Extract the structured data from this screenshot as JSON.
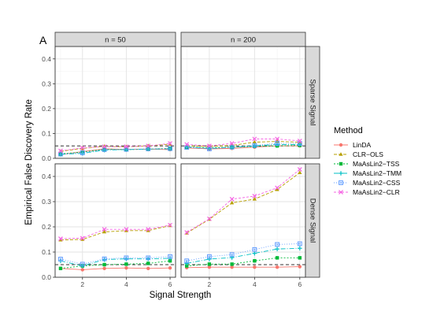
{
  "figure": {
    "panel_tag": "A",
    "xlabel": "Signal Strength",
    "ylabel": "Empirical False Discovery Rate",
    "legend_title": "Method",
    "col_strips": [
      "n = 50",
      "n = 200"
    ],
    "row_strips": [
      "Sparse Signal",
      "Dense Signal"
    ]
  },
  "chart_data": {
    "type": "line",
    "x": [
      1,
      2,
      3,
      4,
      5,
      6
    ],
    "xlim": [
      0.75,
      6.25
    ],
    "ylim": [
      0,
      0.45
    ],
    "x_ticks": [
      2,
      4,
      6
    ],
    "y_ticks": [
      0.0,
      0.1,
      0.2,
      0.3,
      0.4
    ],
    "y_tick_labels": [
      "0.0",
      "0.1",
      "0.2",
      "0.3",
      "0.4"
    ],
    "x_tick_labels": [
      "2",
      "4",
      "6"
    ],
    "reference_line": 0.05,
    "grid": true,
    "legend_position": "right",
    "series_styles": [
      {
        "name": "LinDA",
        "color": "#F8766D",
        "marker": "circle",
        "dash": "none"
      },
      {
        "name": "CLR−OLS",
        "color": "#B79F00",
        "marker": "triangle",
        "dash": "4 2"
      },
      {
        "name": "MaAsLin2−TSS",
        "color": "#00BA38",
        "marker": "square",
        "dash": "2 2"
      },
      {
        "name": "MaAsLin2−TMM",
        "color": "#00BFC4",
        "marker": "plus",
        "dash": "6 2 1 2"
      },
      {
        "name": "MaAsLin2−CSS",
        "color": "#619CFF",
        "marker": "boxed",
        "dash": "1 2"
      },
      {
        "name": "MaAsLin2−CLR",
        "color": "#F564E3",
        "marker": "cross",
        "dash": "3 2"
      }
    ],
    "panels": [
      {
        "column": "n = 50",
        "row": "Sparse Signal",
        "series": [
          {
            "name": "LinDA",
            "values": [
              0.015,
              0.027,
              0.038,
              0.036,
              0.037,
              0.035
            ]
          },
          {
            "name": "CLR−OLS",
            "values": [
              0.028,
              0.04,
              0.048,
              0.046,
              0.05,
              0.057
            ]
          },
          {
            "name": "MaAsLin2−TSS",
            "values": [
              0.018,
              0.025,
              0.036,
              0.035,
              0.037,
              0.04
            ]
          },
          {
            "name": "MaAsLin2−TMM",
            "values": [
              0.016,
              0.02,
              0.033,
              0.035,
              0.037,
              0.038
            ]
          },
          {
            "name": "MaAsLin2−CSS",
            "values": [
              0.017,
              0.022,
              0.035,
              0.036,
              0.038,
              0.039
            ]
          },
          {
            "name": "MaAsLin2−CLR",
            "values": [
              0.03,
              0.042,
              0.047,
              0.047,
              0.05,
              0.06
            ]
          }
        ]
      },
      {
        "column": "n = 200",
        "row": "Sparse Signal",
        "series": [
          {
            "name": "LinDA",
            "values": [
              0.042,
              0.038,
              0.04,
              0.045,
              0.05,
              0.05
            ]
          },
          {
            "name": "CLR−OLS",
            "values": [
              0.05,
              0.048,
              0.052,
              0.065,
              0.068,
              0.065
            ]
          },
          {
            "name": "MaAsLin2−TSS",
            "values": [
              0.045,
              0.042,
              0.045,
              0.048,
              0.05,
              0.052
            ]
          },
          {
            "name": "MaAsLin2−TMM",
            "values": [
              0.046,
              0.04,
              0.044,
              0.05,
              0.056,
              0.055
            ]
          },
          {
            "name": "MaAsLin2−CSS",
            "values": [
              0.044,
              0.038,
              0.045,
              0.052,
              0.06,
              0.06
            ]
          },
          {
            "name": "MaAsLin2−CLR",
            "values": [
              0.056,
              0.05,
              0.06,
              0.078,
              0.078,
              0.07
            ]
          }
        ]
      },
      {
        "column": "n = 50",
        "row": "Dense Signal",
        "series": [
          {
            "name": "LinDA",
            "values": [
              0.035,
              0.03,
              0.035,
              0.037,
              0.035,
              0.037
            ]
          },
          {
            "name": "CLR−OLS",
            "values": [
              0.148,
              0.15,
              0.18,
              0.185,
              0.185,
              0.205
            ]
          },
          {
            "name": "MaAsLin2−TSS",
            "values": [
              0.035,
              0.045,
              0.05,
              0.052,
              0.055,
              0.065
            ]
          },
          {
            "name": "MaAsLin2−TMM",
            "values": [
              0.065,
              0.045,
              0.07,
              0.073,
              0.073,
              0.075
            ]
          },
          {
            "name": "MaAsLin2−CSS",
            "values": [
              0.072,
              0.052,
              0.073,
              0.077,
              0.077,
              0.082
            ]
          },
          {
            "name": "MaAsLin2−CLR",
            "values": [
              0.153,
              0.155,
              0.19,
              0.19,
              0.19,
              0.207
            ]
          }
        ]
      },
      {
        "column": "n = 200",
        "row": "Dense Signal",
        "series": [
          {
            "name": "LinDA",
            "values": [
              0.038,
              0.04,
              0.04,
              0.04,
              0.04,
              0.042
            ]
          },
          {
            "name": "CLR−OLS",
            "values": [
              0.175,
              0.23,
              0.295,
              0.31,
              0.348,
              0.415
            ]
          },
          {
            "name": "MaAsLin2−TSS",
            "values": [
              0.045,
              0.052,
              0.052,
              0.065,
              0.077,
              0.077
            ]
          },
          {
            "name": "MaAsLin2−TMM",
            "values": [
              0.055,
              0.072,
              0.078,
              0.095,
              0.112,
              0.115
            ]
          },
          {
            "name": "MaAsLin2−CSS",
            "values": [
              0.065,
              0.082,
              0.09,
              0.11,
              0.13,
              0.133
            ]
          },
          {
            "name": "MaAsLin2−CLR",
            "values": [
              0.178,
              0.232,
              0.31,
              0.322,
              0.355,
              0.428
            ]
          }
        ]
      }
    ]
  }
}
